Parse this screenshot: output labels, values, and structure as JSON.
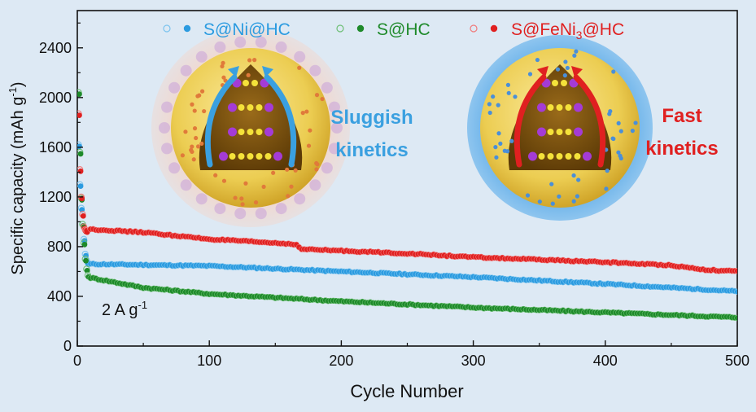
{
  "chart_data": {
    "type": "scatter",
    "xlabel": "Cycle Number",
    "ylabel": "Specific capacity (mAh g",
    "ylabel_sup": "-1",
    "ylabel_close": ")",
    "xlim": [
      0,
      500
    ],
    "ylim": [
      0,
      2700
    ],
    "x_ticks": [
      0,
      100,
      200,
      300,
      400,
      500
    ],
    "y_ticks": [
      0,
      400,
      800,
      1200,
      1600,
      2000,
      2400
    ],
    "annotation": {
      "main": "2 A g",
      "sup": "-1"
    },
    "legend_placement": "top",
    "series": [
      {
        "name": "S@Ni@HC",
        "legend": {
          "main": "S@Ni@HC",
          "sub": ""
        },
        "color": "#2b9be0",
        "open_color": "#7cc4ee",
        "initial": [
          {
            "x": 1,
            "y": 1620
          },
          {
            "x": 2,
            "y": 1300
          },
          {
            "x": 3,
            "y": 1110
          },
          {
            "x": 4,
            "y": 980
          },
          {
            "x": 5,
            "y": 860
          },
          {
            "x": 6,
            "y": 740
          },
          {
            "x": 7,
            "y": 690
          },
          {
            "x": 8,
            "y": 670
          }
        ],
        "trend": [
          [
            10,
            660
          ],
          [
            100,
            645
          ],
          [
            200,
            600
          ],
          [
            300,
            555
          ],
          [
            400,
            500
          ],
          [
            500,
            440
          ]
        ]
      },
      {
        "name": "S@HC",
        "legend": {
          "main": "S@HC",
          "sub": ""
        },
        "color": "#1e8a2a",
        "open_color": "#6dbf74",
        "initial": [
          {
            "x": 1,
            "y": 2040
          },
          {
            "x": 2,
            "y": 1560
          },
          {
            "x": 3,
            "y": 1190
          },
          {
            "x": 4,
            "y": 980
          },
          {
            "x": 5,
            "y": 830
          },
          {
            "x": 6,
            "y": 700
          },
          {
            "x": 7,
            "y": 620
          },
          {
            "x": 8,
            "y": 570
          }
        ],
        "trend": [
          [
            10,
            550
          ],
          [
            50,
            470
          ],
          [
            100,
            420
          ],
          [
            200,
            360
          ],
          [
            300,
            310
          ],
          [
            400,
            270
          ],
          [
            500,
            230
          ]
        ]
      },
      {
        "name": "S@FeNi3@HC",
        "legend": {
          "main": "S@FeNi",
          "sub": "3",
          "tail": "@HC"
        },
        "color": "#e02020",
        "open_color": "#f07a7a",
        "initial": [
          {
            "x": 1,
            "y": 1870
          },
          {
            "x": 2,
            "y": 1420
          },
          {
            "x": 3,
            "y": 1200
          },
          {
            "x": 4,
            "y": 1060
          },
          {
            "x": 5,
            "y": 960
          },
          {
            "x": 6,
            "y": 935
          },
          {
            "x": 7,
            "y": 930
          }
        ],
        "trend": [
          [
            10,
            940
          ],
          [
            50,
            915
          ],
          [
            100,
            860
          ],
          [
            165,
            820
          ],
          [
            170,
            780
          ],
          [
            250,
            745
          ],
          [
            300,
            715
          ],
          [
            400,
            675
          ],
          [
            450,
            650
          ],
          [
            475,
            615
          ],
          [
            500,
            600
          ]
        ]
      }
    ],
    "insets": [
      {
        "kind": "particle",
        "label_lines": [
          "Sluggish",
          "kinetics"
        ],
        "label_color": "#3aa0e0",
        "glow": "#e9c9c8",
        "arrow_color": "#3aa0e0"
      },
      {
        "kind": "particle",
        "label_lines": [
          "Fast",
          "kinetics"
        ],
        "label_color": "#e02020",
        "glow": "#5aa9e6",
        "arrow_color": "#e02020"
      }
    ]
  }
}
